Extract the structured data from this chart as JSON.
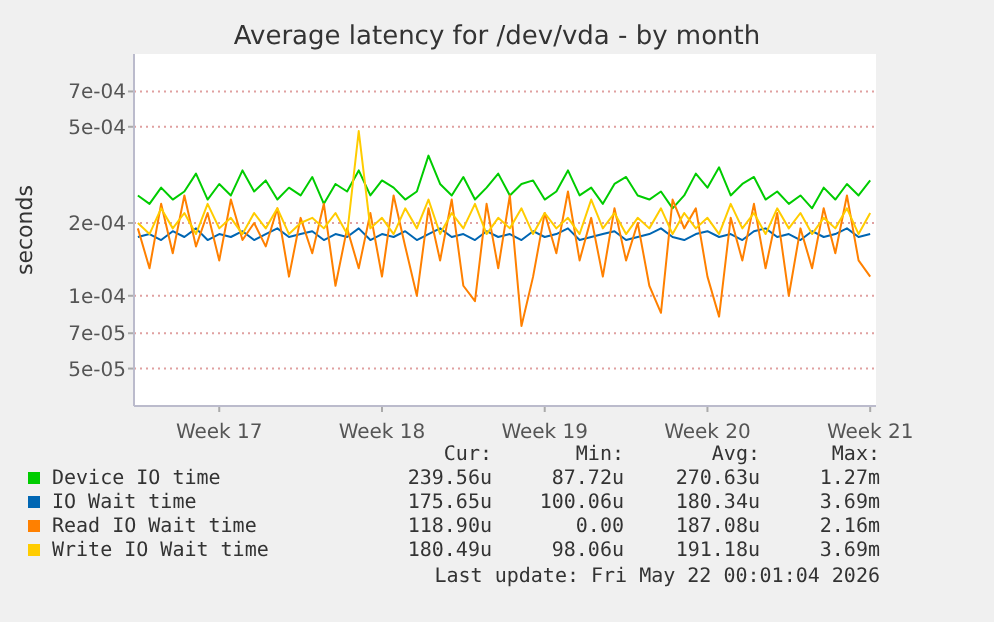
{
  "chart_data": {
    "type": "line",
    "title": "Average latency for /dev/vda - by month",
    "ylabel": "seconds",
    "log": true,
    "grid": "y",
    "legend": "bottom",
    "line_style": "solid",
    "xlim": [
      "2026-04-19T20:00",
      "2026-05-21T18:00"
    ],
    "xticks": [
      {
        "value": "2026-04-23T12:00",
        "label": "Week 17"
      },
      {
        "value": "2026-04-30T12:00",
        "label": "Week 18"
      },
      {
        "value": "2026-05-07T12:00",
        "label": "Week 19"
      },
      {
        "value": "2026-05-14T12:00",
        "label": "Week 20"
      },
      {
        "value": "2026-05-21T12:00",
        "label": "Week 21"
      }
    ],
    "ylim": [
      3.5e-05,
      0.001
    ],
    "yticks": [
      {
        "value": 5e-05,
        "label": "5e-05"
      },
      {
        "value": 7e-05,
        "label": "7e-05"
      },
      {
        "value": 0.0001,
        "label": "1e-04"
      },
      {
        "value": 0.0002,
        "label": "2e-04"
      },
      {
        "value": 0.0005,
        "label": "5e-04"
      },
      {
        "value": 0.0007,
        "label": "7e-04"
      }
    ],
    "x": [
      "2026-04-20T00:00",
      "2026-04-20T12:00",
      "2026-04-21T00:00",
      "2026-04-21T12:00",
      "2026-04-22T00:00",
      "2026-04-22T12:00",
      "2026-04-23T00:00",
      "2026-04-23T12:00",
      "2026-04-24T00:00",
      "2026-04-24T12:00",
      "2026-04-25T00:00",
      "2026-04-25T12:00",
      "2026-04-26T00:00",
      "2026-04-26T12:00",
      "2026-04-27T00:00",
      "2026-04-27T12:00",
      "2026-04-28T00:00",
      "2026-04-28T12:00",
      "2026-04-29T00:00",
      "2026-04-29T12:00",
      "2026-04-30T00:00",
      "2026-04-30T12:00",
      "2026-05-01T00:00",
      "2026-05-01T12:00",
      "2026-05-02T00:00",
      "2026-05-02T12:00",
      "2026-05-03T00:00",
      "2026-05-03T12:00",
      "2026-05-04T00:00",
      "2026-05-04T12:00",
      "2026-05-05T00:00",
      "2026-05-05T12:00",
      "2026-05-06T00:00",
      "2026-05-06T12:00",
      "2026-05-07T00:00",
      "2026-05-07T12:00",
      "2026-05-08T00:00",
      "2026-05-08T12:00",
      "2026-05-09T00:00",
      "2026-05-09T12:00",
      "2026-05-10T00:00",
      "2026-05-10T12:00",
      "2026-05-11T00:00",
      "2026-05-11T12:00",
      "2026-05-12T00:00",
      "2026-05-12T12:00",
      "2026-05-13T00:00",
      "2026-05-13T12:00",
      "2026-05-14T00:00",
      "2026-05-14T12:00",
      "2026-05-15T00:00",
      "2026-05-15T12:00",
      "2026-05-16T00:00",
      "2026-05-16T12:00",
      "2026-05-17T00:00",
      "2026-05-17T12:00",
      "2026-05-18T00:00",
      "2026-05-18T12:00",
      "2026-05-19T00:00",
      "2026-05-19T12:00",
      "2026-05-20T00:00",
      "2026-05-20T12:00",
      "2026-05-21T00:00",
      "2026-05-21T12:00"
    ],
    "series": [
      {
        "name": "Device IO time",
        "color": "#00cc00",
        "values": [
          0.00026,
          0.00024,
          0.00028,
          0.00025,
          0.00027,
          0.00032,
          0.00025,
          0.00029,
          0.00026,
          0.00033,
          0.00027,
          0.0003,
          0.00025,
          0.00028,
          0.00026,
          0.00031,
          0.00024,
          0.00029,
          0.00027,
          0.00033,
          0.00026,
          0.0003,
          0.00028,
          0.00025,
          0.00027,
          0.00038,
          0.00029,
          0.00026,
          0.00031,
          0.00025,
          0.00028,
          0.00032,
          0.00026,
          0.00029,
          0.0003,
          0.00025,
          0.00027,
          0.00033,
          0.00026,
          0.00028,
          0.00024,
          0.00029,
          0.00031,
          0.00026,
          0.00025,
          0.00027,
          0.00023,
          0.00026,
          0.00032,
          0.00028,
          0.00034,
          0.00026,
          0.00029,
          0.00031,
          0.00025,
          0.00027,
          0.00024,
          0.00026,
          0.00023,
          0.00028,
          0.00025,
          0.00029,
          0.00026,
          0.0003
        ]
      },
      {
        "name": "IO Wait time",
        "color": "#0066b3",
        "values": [
          0.000175,
          0.00018,
          0.00017,
          0.000185,
          0.000175,
          0.00019,
          0.00017,
          0.00018,
          0.000175,
          0.000185,
          0.00017,
          0.00018,
          0.00019,
          0.000175,
          0.00018,
          0.000185,
          0.00017,
          0.00018,
          0.000175,
          0.00019,
          0.00017,
          0.00018,
          0.000175,
          0.000185,
          0.00017,
          0.00018,
          0.00019,
          0.000175,
          0.00018,
          0.00017,
          0.000185,
          0.000175,
          0.00018,
          0.00017,
          0.000185,
          0.000175,
          0.00018,
          0.00019,
          0.00017,
          0.000175,
          0.00018,
          0.000185,
          0.00017,
          0.000175,
          0.00018,
          0.00019,
          0.000175,
          0.00017,
          0.00018,
          0.000185,
          0.000175,
          0.00018,
          0.00017,
          0.000185,
          0.00019,
          0.000175,
          0.00018,
          0.00017,
          0.000185,
          0.000175,
          0.00018,
          0.00019,
          0.000175,
          0.00018
        ]
      },
      {
        "name": "Read IO Wait time",
        "color": "#ff8000",
        "values": [
          0.00019,
          0.00013,
          0.00024,
          0.00015,
          0.00026,
          0.00016,
          0.00022,
          0.00014,
          0.00025,
          0.00017,
          0.0002,
          0.00016,
          0.00023,
          0.00012,
          0.00021,
          0.00015,
          0.00024,
          0.00011,
          0.00019,
          0.00013,
          0.00022,
          0.00012,
          0.00026,
          0.00016,
          0.0001,
          0.00023,
          0.00014,
          0.00025,
          0.00011,
          9.5e-05,
          0.00024,
          0.00013,
          0.00026,
          7.5e-05,
          0.00012,
          0.00022,
          0.00015,
          0.00027,
          0.00014,
          0.00021,
          0.00012,
          0.00023,
          0.00014,
          0.0002,
          0.00011,
          8.5e-05,
          0.00025,
          0.00019,
          0.00023,
          0.00012,
          8.2e-05,
          0.00021,
          0.00014,
          0.00024,
          0.00013,
          0.00022,
          0.0001,
          0.00019,
          0.00013,
          0.00023,
          0.00015,
          0.00026,
          0.00014,
          0.00012
        ]
      },
      {
        "name": "Write IO Wait time",
        "color": "#ffcc00",
        "values": [
          0.0002,
          0.00018,
          0.00023,
          0.00019,
          0.00022,
          0.00018,
          0.00024,
          0.00019,
          0.00021,
          0.00018,
          0.00022,
          0.00019,
          0.00023,
          0.00018,
          0.0002,
          0.00021,
          0.00019,
          0.00022,
          0.00018,
          0.00048,
          0.00019,
          0.00021,
          0.00018,
          0.00023,
          0.00019,
          0.00025,
          0.00018,
          0.00022,
          0.00019,
          0.00024,
          0.00018,
          0.00021,
          0.00019,
          0.00023,
          0.00018,
          0.00022,
          0.00019,
          0.00021,
          0.00018,
          0.00025,
          0.00019,
          0.00022,
          0.00018,
          0.00021,
          0.00019,
          0.00023,
          0.00018,
          0.00022,
          0.00019,
          0.00021,
          0.00018,
          0.00024,
          0.00019,
          0.00022,
          0.00018,
          0.00023,
          0.00019,
          0.00022,
          0.00018,
          0.00021,
          0.00019,
          0.00023,
          0.00018,
          0.00022
        ]
      }
    ],
    "annotations": [
      "Cur:",
      "Min:",
      "Avg:",
      "Max:",
      "239.56u",
      "87.72u",
      "270.63u",
      "1.27m",
      "175.65u",
      "100.06u",
      "180.34u",
      "3.69m",
      "118.90u",
      "0.00",
      "187.08u",
      "2.16m",
      "180.49u",
      "98.06u",
      "191.18u",
      "3.69m",
      "Last update: Fri May 22 00:01:04 2026"
    ]
  }
}
